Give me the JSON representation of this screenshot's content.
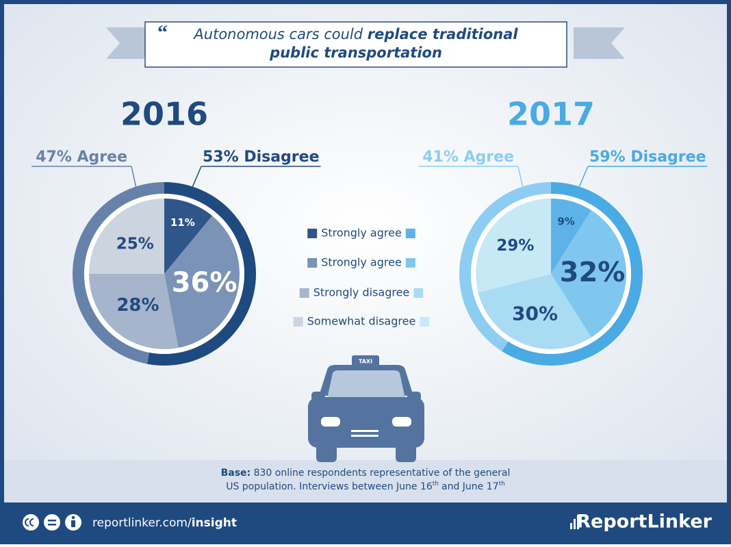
{
  "header": {
    "lead": "Autonomous cars could",
    "emphasis": [
      "replace traditional",
      "public transportation"
    ]
  },
  "chart_data": [
    {
      "type": "pie",
      "title": "2016",
      "title_color": "#1f4a80",
      "values": [
        11,
        36,
        28,
        25
      ],
      "value_labels": [
        "11%",
        "36%",
        "28%",
        "25%"
      ],
      "colors": [
        "#2f5689",
        "#7b93b6",
        "#a6b5cc",
        "#ccd4e0"
      ],
      "label_colors": [
        "#ffffff",
        "#ffffff",
        "#1f4a80",
        "#1f4a80"
      ],
      "ring": {
        "values": [
          53,
          47
        ],
        "value_labels": [
          "53% Disagree",
          "47% Agree"
        ],
        "colors": [
          "#1f4a80",
          "#6782aa"
        ],
        "label_colors": [
          "#1f4a80",
          "#6782aa"
        ]
      }
    },
    {
      "type": "pie",
      "title": "2017",
      "title_color": "#4aaae4",
      "values": [
        9,
        32,
        30,
        29
      ],
      "value_labels": [
        "9%",
        "32%",
        "30%",
        "29%"
      ],
      "colors": [
        "#5db3e7",
        "#80c7ef",
        "#a9dcf3",
        "#c7e9f6"
      ],
      "label_colors": [
        "#1f4a80",
        "#1f4a80",
        "#1f4a80",
        "#1f4a80"
      ],
      "ring": {
        "values": [
          59,
          41
        ],
        "value_labels": [
          "59% Disagree",
          "41% Agree"
        ],
        "colors": [
          "#4aaae4",
          "#8dcdf2"
        ],
        "label_colors": [
          "#4aaae4",
          "#8dcdf2"
        ]
      }
    }
  ],
  "legend": [
    "Strongly agree",
    "Strongly agree",
    "Strongly disagree",
    "Somewhat disagree"
  ],
  "taxi_sign": "TAXI",
  "base": {
    "label": "Base:",
    "line1": "830 online respondents representative of the general",
    "line2": [
      "US population. Interviews between June 16",
      "th",
      "and June 17",
      "th"
    ]
  },
  "footer": {
    "site": "reportlinker.com/",
    "site_bold": "insight",
    "brand": "ReportLinker"
  }
}
